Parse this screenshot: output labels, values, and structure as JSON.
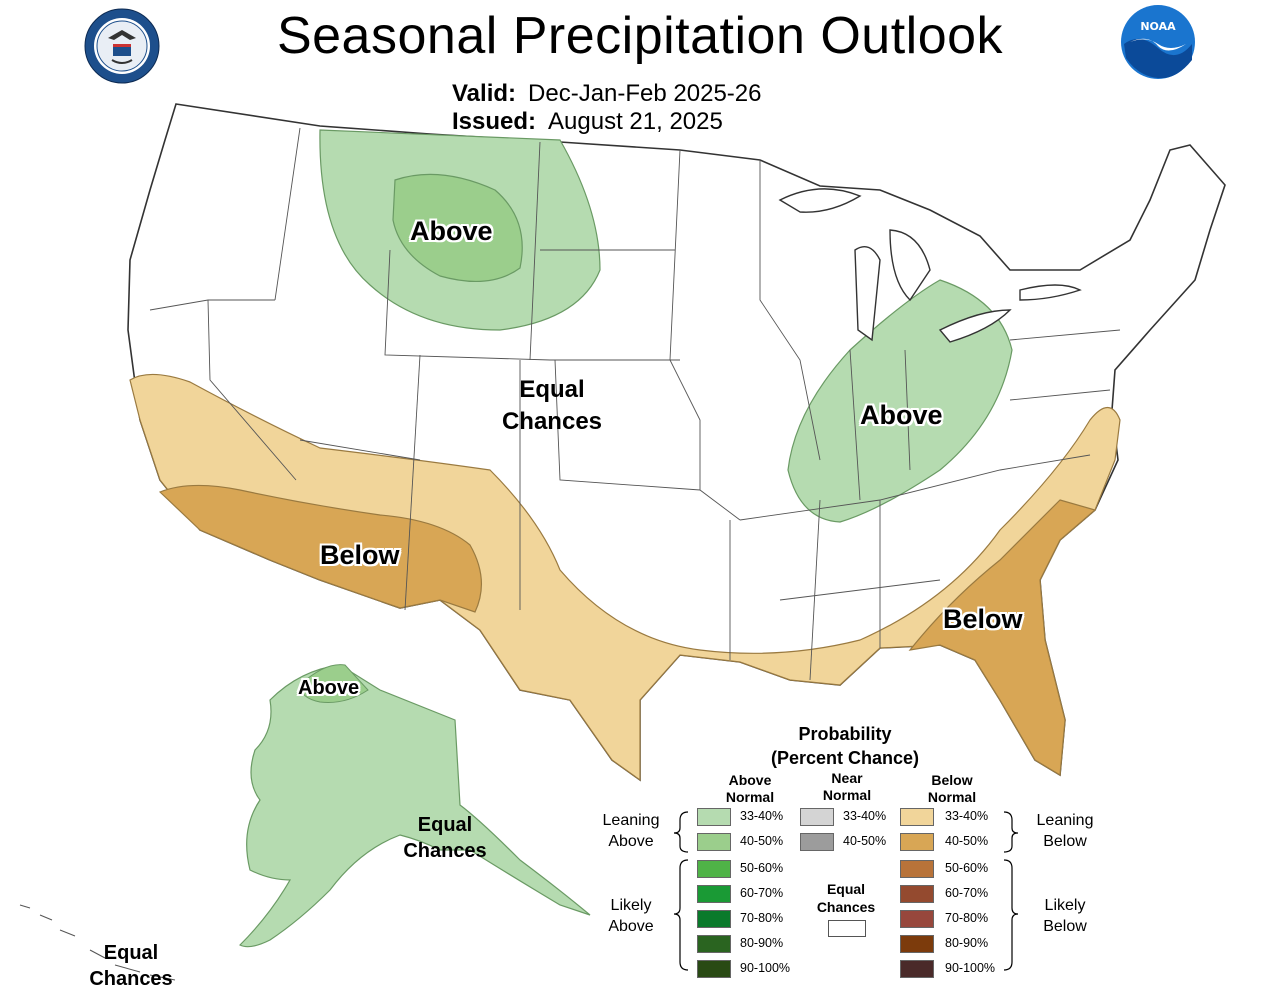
{
  "title": "Seasonal Precipitation Outlook",
  "valid_label": "Valid:",
  "valid_value": "Dec-Jan-Feb 2025-26",
  "issued_label": "Issued:",
  "issued_value": "August 21, 2025",
  "noaa_logo_text": "NOAA",
  "map_labels": {
    "above_north": "Above",
    "above_ohio": "Above",
    "below_sw": "Below",
    "below_se": "Below",
    "above_alaska": "Above",
    "equal_center_1": "Equal",
    "equal_center_2": "Chances",
    "equal_ak_1": "Equal",
    "equal_ak_2": "Chances",
    "equal_hi_1": "Equal",
    "equal_hi_2": "Chances"
  },
  "legend": {
    "title_1": "Probability",
    "title_2": "(Percent Chance)",
    "col_above_1": "Above",
    "col_above_2": "Normal",
    "col_near_1": "Near",
    "col_near_2": "Normal",
    "col_below_1": "Below",
    "col_below_2": "Normal",
    "leaning_above_1": "Leaning",
    "leaning_above_2": "Above",
    "likely_above_1": "Likely",
    "likely_above_2": "Above",
    "leaning_below_1": "Leaning",
    "leaning_below_2": "Below",
    "likely_below_1": "Likely",
    "likely_below_2": "Below",
    "ec_1": "Equal",
    "ec_2": "Chances",
    "above": [
      {
        "range": "33-40%",
        "color": "#b5dbb0"
      },
      {
        "range": "40-50%",
        "color": "#9bce8c"
      },
      {
        "range": "50-60%",
        "color": "#4fb347"
      },
      {
        "range": "60-70%",
        "color": "#1a9a35"
      },
      {
        "range": "70-80%",
        "color": "#0a7a2b"
      },
      {
        "range": "80-90%",
        "color": "#2a6420"
      },
      {
        "range": "90-100%",
        "color": "#294a14"
      }
    ],
    "near": [
      {
        "range": "33-40%",
        "color": "#d4d4d4"
      },
      {
        "range": "40-50%",
        "color": "#9c9c9c"
      }
    ],
    "below": [
      {
        "range": "33-40%",
        "color": "#f1d59a"
      },
      {
        "range": "40-50%",
        "color": "#d8a655"
      },
      {
        "range": "50-60%",
        "color": "#b87339"
      },
      {
        "range": "60-70%",
        "color": "#944a2f"
      },
      {
        "range": "70-80%",
        "color": "#97473c"
      },
      {
        "range": "80-90%",
        "color": "#7c3b0c"
      },
      {
        "range": "90-100%",
        "color": "#4a2a29"
      }
    ]
  }
}
